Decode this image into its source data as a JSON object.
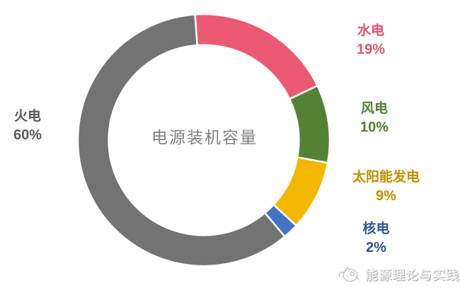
{
  "chart_data": {
    "type": "pie",
    "subtype": "donut",
    "title": "电源装机容量",
    "title_color": "#7F7F7F",
    "legend_position": "around",
    "start_angle_deg": -4,
    "direction": "clockwise",
    "inner_radius_ratio": 0.755,
    "segment_gap_color": "#FFFFFF",
    "segments": [
      {
        "id": "hydro",
        "label": "水电",
        "value": 19,
        "pct_label": "19%",
        "color": "#EB5A72",
        "label_color": "#E8536E"
      },
      {
        "id": "wind",
        "label": "风电",
        "value": 10,
        "pct_label": "10%",
        "color": "#548235",
        "label_color": "#538135"
      },
      {
        "id": "solar",
        "label": "太阳能发电",
        "value": 9,
        "pct_label": "9%",
        "color": "#F3B700",
        "label_color": "#BF9000"
      },
      {
        "id": "nuclear",
        "label": "核电",
        "value": 2,
        "pct_label": "2%",
        "color": "#4472C4",
        "label_color": "#2F5597"
      },
      {
        "id": "thermal",
        "label": "火电",
        "value": 60,
        "pct_label": "60%",
        "color": "#737373",
        "label_color": "#595959"
      }
    ]
  },
  "watermark": {
    "text": "能源理论与实践",
    "logo_icon": "doodle-animal-icon"
  }
}
